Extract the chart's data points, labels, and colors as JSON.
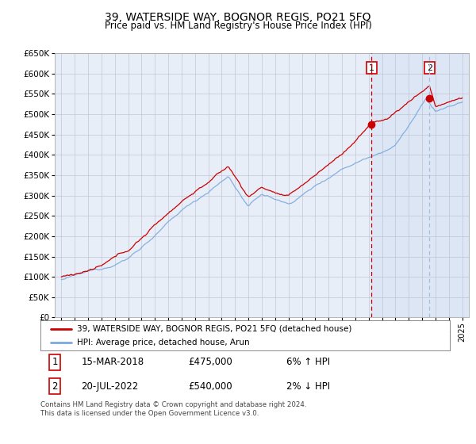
{
  "title": "39, WATERSIDE WAY, BOGNOR REGIS, PO21 5FQ",
  "subtitle": "Price paid vs. HM Land Registry's House Price Index (HPI)",
  "legend_line1": "39, WATERSIDE WAY, BOGNOR REGIS, PO21 5FQ (detached house)",
  "legend_line2": "HPI: Average price, detached house, Arun",
  "annotation1_date": "15-MAR-2018",
  "annotation1_price": "£475,000",
  "annotation1_change": "6% ↑ HPI",
  "annotation2_date": "20-JUL-2022",
  "annotation2_price": "£540,000",
  "annotation2_change": "2% ↓ HPI",
  "footer": "Contains HM Land Registry data © Crown copyright and database right 2024.\nThis data is licensed under the Open Government Licence v3.0.",
  "hpi_color": "#7aaadd",
  "price_color": "#cc0000",
  "annotation_box_color": "#cc0000",
  "vline1_color": "#cc0000",
  "vline2_color": "#aabbdd",
  "background_color": "#ffffff",
  "plot_bg_color": "#e8eef8",
  "shade_color": "#ccd8ee",
  "ylim": [
    0,
    650000
  ],
  "sale1_year": 2018.21,
  "sale1_price": 475000,
  "sale2_year": 2022.55,
  "sale2_price": 540000,
  "xmin": 1994.5,
  "xmax": 2025.5
}
